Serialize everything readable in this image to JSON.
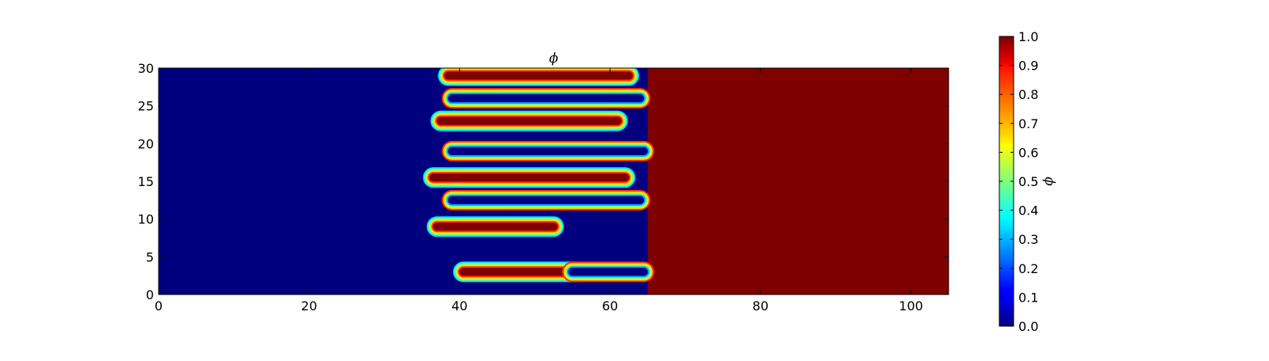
{
  "chart_data": {
    "type": "heatmap",
    "title": "ϕ",
    "xlabel": "",
    "ylabel": "",
    "colorbar_label": "ϕ",
    "colormap": "jet",
    "xlim": [
      0,
      105
    ],
    "ylim": [
      0,
      30
    ],
    "clim": [
      0,
      1
    ],
    "x_ticks": [
      0,
      20,
      40,
      60,
      80,
      100
    ],
    "x_tick_labels": [
      "0",
      "20",
      "40",
      "60",
      "80",
      "100"
    ],
    "y_ticks": [
      0,
      5,
      10,
      15,
      20,
      25,
      30
    ],
    "y_tick_labels": [
      "0",
      "5",
      "10",
      "15",
      "20",
      "25",
      "30"
    ],
    "colorbar_ticks": [
      0.0,
      0.1,
      0.2,
      0.3,
      0.4,
      0.5,
      0.6,
      0.7,
      0.8,
      0.9,
      1.0
    ],
    "colorbar_tick_labels": [
      "0.0",
      "0.1",
      "0.2",
      "0.3",
      "0.4",
      "0.5",
      "0.6",
      "0.7",
      "0.8",
      "0.9",
      "1.0"
    ],
    "regions": {
      "phase_0_color": "#00007f",
      "phase_1_color": "#7f0000",
      "interface_x_range": [
        37,
        65
      ],
      "description_of_field": "phi = 0 for x < ~37, phi = 1 for x > ~65, interdigitated fingers in between"
    },
    "fingers": [
      {
        "phase": 1,
        "y_center": 29.0,
        "x_start": 38.5,
        "x_end": 62.5,
        "tip": "left"
      },
      {
        "phase": 1,
        "y_center": 23.0,
        "x_start": 37.5,
        "x_end": 61.0,
        "tip": "left"
      },
      {
        "phase": 1,
        "y_center": 15.5,
        "x_start": 36.5,
        "x_end": 62.0,
        "tip": "left"
      },
      {
        "phase": 1,
        "y_center": 9.0,
        "x_start": 37.0,
        "x_end": 52.5,
        "tip": "left"
      },
      {
        "phase": 1,
        "y_center": 3.0,
        "x_start": 40.5,
        "x_end": 55.5,
        "tip": "left"
      },
      {
        "phase": 0,
        "y_center": 26.0,
        "x_start": 39.0,
        "x_end": 64.0,
        "tip": "right"
      },
      {
        "phase": 0,
        "y_center": 19.0,
        "x_start": 39.0,
        "x_end": 64.5,
        "tip": "right"
      },
      {
        "phase": 0,
        "y_center": 12.5,
        "x_start": 39.0,
        "x_end": 64.0,
        "tip": "right"
      },
      {
        "phase": 0,
        "y_center": 3.0,
        "x_start": 55.0,
        "x_end": 64.5,
        "tip": "right"
      }
    ]
  }
}
